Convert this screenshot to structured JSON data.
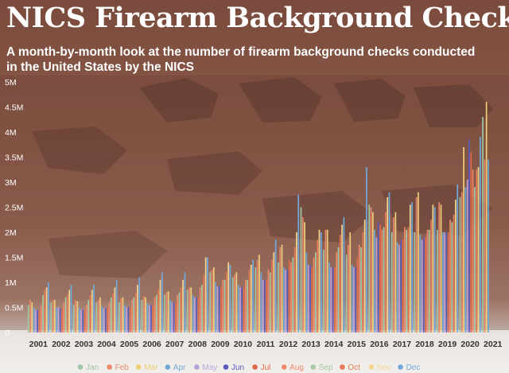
{
  "title": "NICS Firearm Background Checks",
  "subtitle": "A month-by-month look at the number of firearm background checks conducted in the United States by the NICS",
  "colors": {
    "months": [
      "#9cc7a4",
      "#e9896c",
      "#f0cf7a",
      "#6fa7d6",
      "#b7a3d8",
      "#5b5bbf",
      "#e06a48",
      "#f08a6a",
      "#a7c9a3",
      "#e67a56",
      "#f3d58e",
      "#70a9de"
    ],
    "text": "#ffffff",
    "axis_label": "#333333"
  },
  "chart_data": {
    "type": "bar",
    "title": "NICS Firearm Background Checks",
    "subtitle": "A month-by-month look at the number of firearm background checks conducted in the United States by the NICS",
    "xlabel": "",
    "ylabel": "",
    "ylim": [
      0,
      5
    ],
    "unit": "M",
    "y_ticks": [
      "0",
      "0.5M",
      "1M",
      "1.5M",
      "2M",
      "2.5M",
      "3M",
      "3.5M",
      "4M",
      "4.5M",
      "5M"
    ],
    "categories": [
      "2001",
      "2002",
      "2003",
      "2004",
      "2005",
      "2006",
      "2007",
      "2008",
      "2009",
      "2010",
      "2011",
      "2012",
      "2013",
      "2014",
      "2015",
      "2016",
      "2017",
      "2018",
      "2019",
      "2020",
      "2021"
    ],
    "legend_position": "bottom",
    "series": [
      {
        "name": "Jan",
        "values": [
          0.55,
          0.6,
          0.55,
          0.6,
          0.6,
          0.65,
          0.75,
          0.85,
          1.2,
          1.1,
          1.3,
          1.4,
          2.5,
          1.65,
          1.55,
          2.55,
          2.0,
          2.0,
          2.05,
          2.7,
          4.3
        ]
      },
      {
        "name": "Feb",
        "values": [
          0.65,
          0.65,
          0.65,
          0.65,
          0.68,
          0.72,
          0.8,
          0.9,
          1.25,
          1.15,
          1.45,
          1.7,
          2.3,
          2.05,
          1.75,
          2.5,
          2.3,
          2.7,
          2.6,
          2.8,
          3.45
        ]
      },
      {
        "name": "Mar",
        "values": [
          0.6,
          0.65,
          0.62,
          0.7,
          0.7,
          0.7,
          0.82,
          0.9,
          1.3,
          1.2,
          1.55,
          1.75,
          2.2,
          2.05,
          2.0,
          2.4,
          2.4,
          2.8,
          2.55,
          3.7,
          4.6
        ]
      },
      {
        "name": "Apr",
        "values": [
          0.5,
          0.5,
          0.5,
          0.52,
          0.55,
          0.58,
          0.65,
          0.75,
          1.0,
          0.95,
          1.2,
          1.3,
          1.6,
          1.4,
          1.35,
          2.05,
          1.8,
          1.95,
          2.0,
          2.9,
          3.45
        ]
      },
      {
        "name": "May",
        "values": [
          0.45,
          0.5,
          0.45,
          0.48,
          0.5,
          0.55,
          0.6,
          0.7,
          0.92,
          0.9,
          1.05,
          1.25,
          1.35,
          1.3,
          1.3,
          1.9,
          1.75,
          1.85,
          2.0,
          3.05,
          0
        ]
      },
      {
        "name": "Jun",
        "values": [
          0.45,
          0.48,
          0.45,
          0.48,
          0.5,
          0.55,
          0.6,
          0.7,
          0.92,
          0.9,
          1.05,
          1.25,
          1.35,
          1.3,
          1.3,
          2.2,
          1.85,
          1.9,
          2.0,
          3.85,
          0
        ]
      },
      {
        "name": "Jul",
        "values": [
          0.45,
          0.48,
          0.45,
          0.48,
          0.5,
          0.55,
          0.6,
          0.7,
          0.9,
          0.9,
          1.05,
          1.45,
          1.3,
          1.3,
          1.5,
          2.15,
          1.85,
          1.9,
          2.0,
          3.6,
          0
        ]
      },
      {
        "name": "Aug",
        "values": [
          0.55,
          0.6,
          0.55,
          0.6,
          0.65,
          0.7,
          0.75,
          0.9,
          1.05,
          1.05,
          1.25,
          1.4,
          1.5,
          1.6,
          1.75,
          2.05,
          2.1,
          2.05,
          2.25,
          3.25,
          0
        ]
      },
      {
        "name": "Sep",
        "values": [
          0.75,
          0.7,
          0.65,
          0.7,
          0.7,
          0.75,
          0.8,
          0.95,
          1.05,
          1.05,
          1.2,
          1.5,
          1.6,
          1.7,
          1.7,
          2.1,
          2.05,
          2.05,
          2.2,
          2.9,
          0
        ]
      },
      {
        "name": "Oct",
        "values": [
          0.85,
          0.75,
          0.75,
          0.78,
          0.8,
          0.85,
          0.9,
          1.15,
          1.2,
          1.25,
          1.45,
          1.7,
          1.85,
          1.95,
          2.0,
          2.4,
          2.1,
          2.25,
          2.35,
          3.25,
          0
        ]
      },
      {
        "name": "Nov",
        "values": [
          0.9,
          0.85,
          0.85,
          0.9,
          0.95,
          1.05,
          1.05,
          1.5,
          1.4,
          1.35,
          1.6,
          2.0,
          2.05,
          2.15,
          2.25,
          2.7,
          2.55,
          2.55,
          2.65,
          3.3,
          0
        ]
      },
      {
        "name": "Dec",
        "values": [
          1.0,
          0.95,
          0.95,
          1.05,
          1.1,
          1.2,
          1.2,
          1.5,
          1.35,
          1.45,
          1.85,
          2.75,
          2.0,
          2.3,
          3.3,
          2.8,
          2.6,
          2.5,
          2.95,
          3.9,
          0
        ]
      }
    ]
  }
}
